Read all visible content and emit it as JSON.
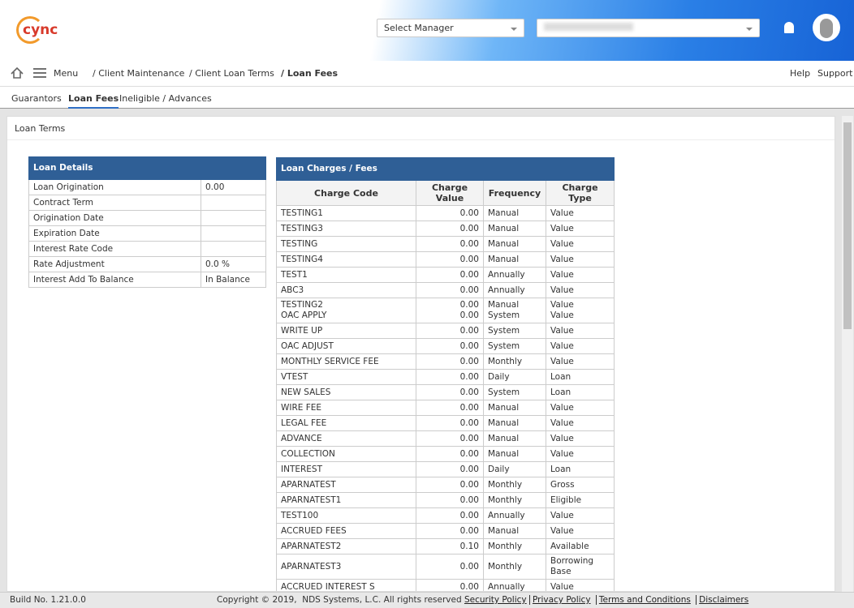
{
  "header": {
    "logo": "cync",
    "manager_select": "Select Manager"
  },
  "breadcrumb": {
    "menu": "Menu",
    "items": [
      "/ Client Maintenance",
      "/ Client Loan Terms",
      "/ Loan Fees"
    ],
    "help": "Help",
    "support": "Support"
  },
  "tabs": [
    "Guarantors",
    "Loan Fees",
    "Ineligible / Advances"
  ],
  "panel": {
    "title": "Loan Terms"
  },
  "loan_details": {
    "title": "Loan Details",
    "rows": [
      [
        "Loan Origination",
        "0.00"
      ],
      [
        "Contract Term",
        ""
      ],
      [
        "Origination Date",
        ""
      ],
      [
        "Expiration Date",
        ""
      ],
      [
        "Interest Rate Code",
        ""
      ],
      [
        "Rate Adjustment",
        "0.0 %"
      ],
      [
        "Interest Add To Balance",
        "In Balance"
      ]
    ]
  },
  "loan_charges": {
    "title": "Loan Charges / Fees",
    "columns": [
      "Charge Code",
      "Charge Value",
      "Frequency",
      "Charge Type"
    ],
    "rows": [
      [
        "TESTING1",
        "0.00",
        "Manual",
        "Value"
      ],
      [
        "TESTING3",
        "0.00",
        "Manual",
        "Value"
      ],
      [
        "TESTING",
        "0.00",
        "Manual",
        "Value"
      ],
      [
        "TESTING4",
        "0.00",
        "Manual",
        "Value"
      ],
      [
        "TEST1",
        "0.00",
        "Annually",
        "Value"
      ],
      [
        "ABC3",
        "0.00",
        "Annually",
        "Value"
      ],
      [
        [
          "TESTING2",
          "OAC APPLY"
        ],
        [
          "0.00",
          "0.00"
        ],
        [
          "Manual",
          "System"
        ],
        [
          "Value",
          "Value"
        ]
      ],
      [
        "WRITE UP",
        "0.00",
        "System",
        "Value"
      ],
      [
        "OAC ADJUST",
        "0.00",
        "System",
        "Value"
      ],
      [
        "MONTHLY SERVICE FEE",
        "0.00",
        "Monthly",
        "Value"
      ],
      [
        "VTEST",
        "0.00",
        "Daily",
        "Loan"
      ],
      [
        "NEW SALES",
        "0.00",
        "System",
        "Loan"
      ],
      [
        "WIRE FEE",
        "0.00",
        "Manual",
        "Value"
      ],
      [
        "LEGAL FEE",
        "0.00",
        "Manual",
        "Value"
      ],
      [
        "ADVANCE",
        "0.00",
        "Manual",
        "Value"
      ],
      [
        "COLLECTION",
        "0.00",
        "Manual",
        "Value"
      ],
      [
        "INTEREST",
        "0.00",
        "Daily",
        "Loan"
      ],
      [
        "APARNATEST",
        "0.00",
        "Monthly",
        "Gross"
      ],
      [
        "APARNATEST1",
        "0.00",
        "Monthly",
        "Eligible"
      ],
      [
        "TEST100",
        "0.00",
        "Annually",
        "Value"
      ],
      [
        "ACCRUED FEES",
        "0.00",
        "Manual",
        "Value"
      ],
      [
        "APARNATEST2",
        "0.10",
        "Monthly",
        "Available"
      ],
      [
        "APARNATEST3",
        "0.00",
        "Monthly",
        "Borrowing Base"
      ],
      [
        "ACCRUED INTEREST S",
        "0.00",
        "Annually",
        "Value"
      ]
    ]
  },
  "footer": {
    "build": "Build No. 1.21.0.0",
    "copyright": "Copyright © 2019,  NDS Systems, L.C. All rights reserved",
    "links": [
      "Security Policy",
      "Privacy Policy",
      "Terms and Conditions",
      "Disclaimers"
    ]
  }
}
